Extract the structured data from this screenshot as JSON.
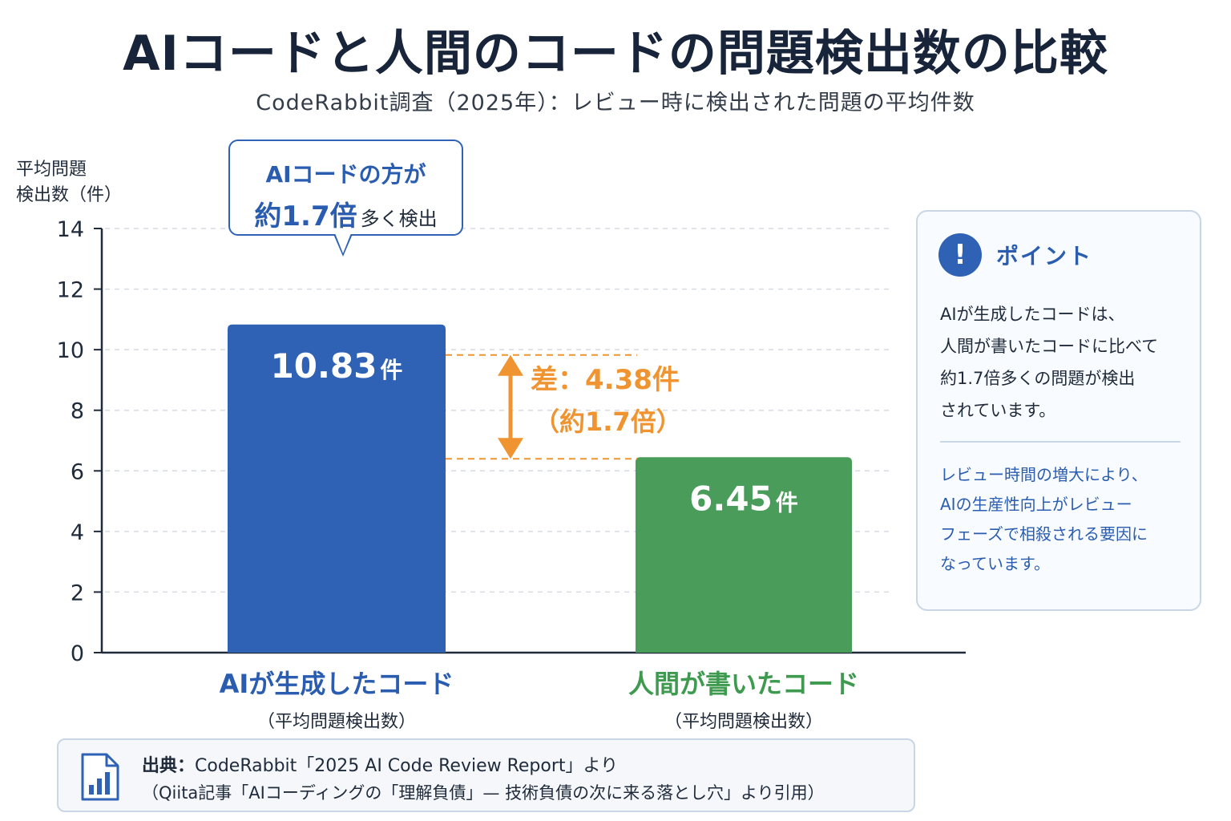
{
  "header": {
    "title": "AIコードと人間のコードの問題検出数の比較",
    "subtitle": "CodeRabbit調査（2025年）：レビュー時に検出された問題の平均件数"
  },
  "chart_data": {
    "type": "bar",
    "ylabel_line1": "平均問題",
    "ylabel_line2": "検出数（件）",
    "ylim": [
      0,
      14
    ],
    "yticks": [
      "0",
      "2",
      "4",
      "6",
      "8",
      "10",
      "12",
      "14"
    ],
    "grid": true,
    "categories": [
      "AIが生成したコード",
      "人間が書いたコード"
    ],
    "category_sublabels": [
      "（平均問題検出数）",
      "（平均問題検出数）"
    ],
    "values": [
      10.83,
      6.45
    ],
    "value_labels": [
      "10.83",
      "6.45"
    ],
    "unit": "件",
    "colors": [
      "#2f62b5",
      "#4a9c5b"
    ],
    "annotations": {
      "callout_line1": "AIコードの方が",
      "callout_big": "約1.7倍",
      "callout_small": "多く検出",
      "diff_line1": "差：4.38件",
      "diff_line2": "（約1.7倍）",
      "diff_color": "#ef9431"
    }
  },
  "point_box": {
    "icon": "exclamation-icon",
    "title": "ポイント",
    "body_lines": [
      "AIが生成したコードは、",
      "人間が書いたコードに比べて",
      "約1.7倍多くの問題が検出",
      "されています。"
    ],
    "note_lines": [
      "レビュー時間の増大により、",
      "AIの生産性向上がレビュー",
      "フェーズで相殺される要因に",
      "なっています。"
    ]
  },
  "source": {
    "icon": "document-chart-icon",
    "label": "出典：",
    "line1": "CodeRabbit「2025 AI Code Review Report」より",
    "line2": "（Qiita記事「AIコーディングの「理解負債」— 技術負債の次に来る落とし穴」より引用）"
  }
}
